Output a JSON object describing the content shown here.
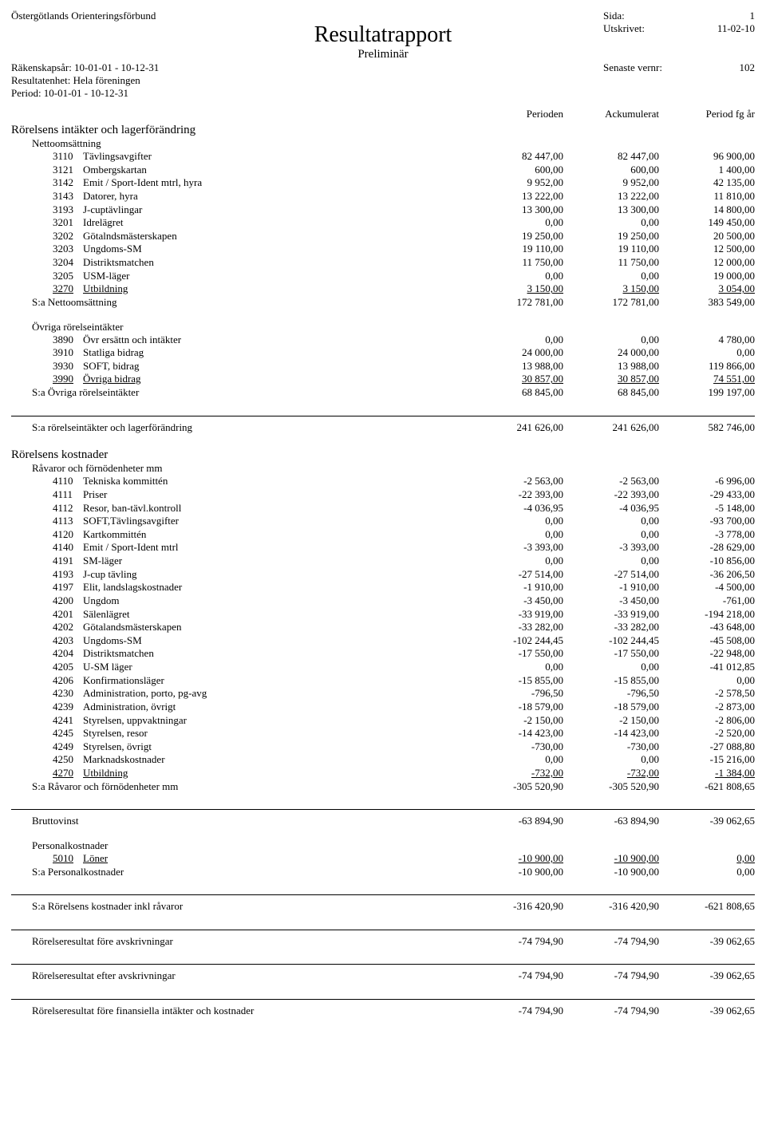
{
  "header": {
    "org": "Östergötlands Orienteringsförbund",
    "title": "Resultatrapport",
    "subtitle": "Preliminär",
    "right": [
      {
        "label": "Sida:",
        "value": "1"
      },
      {
        "label": "Utskrivet:",
        "value": "11-02-10"
      },
      {
        "label": "Senaste vernr:",
        "value": "102"
      }
    ],
    "left": [
      "Räkenskapsår: 10-01-01 - 10-12-31",
      "Resultatenhet: Hela föreningen",
      "Period: 10-01-01 - 10-12-31"
    ]
  },
  "columns": [
    "Perioden",
    "Ackumulerat",
    "Period fg år"
  ],
  "sections": [
    {
      "title": "Rörelsens intäkter och lagerförändring",
      "groups": [
        {
          "heading": "Nettoomsättning",
          "rows": [
            {
              "code": "3110",
              "label": "Tävlingsavgifter",
              "v": [
                "82 447,00",
                "82 447,00",
                "96 900,00"
              ]
            },
            {
              "code": "3121",
              "label": "Ombergskartan",
              "v": [
                "600,00",
                "600,00",
                "1 400,00"
              ]
            },
            {
              "code": "3142",
              "label": "Emit / Sport-Ident mtrl, hyra",
              "v": [
                "9 952,00",
                "9 952,00",
                "42 135,00"
              ]
            },
            {
              "code": "3143",
              "label": "Datorer, hyra",
              "v": [
                "13 222,00",
                "13 222,00",
                "11 810,00"
              ]
            },
            {
              "code": "3193",
              "label": "J-cuptävlingar",
              "v": [
                "13 300,00",
                "13 300,00",
                "14 800,00"
              ]
            },
            {
              "code": "3201",
              "label": "Idrelägret",
              "v": [
                "0,00",
                "0,00",
                "149 450,00"
              ]
            },
            {
              "code": "3202",
              "label": "Götalndsmästerskapen",
              "v": [
                "19 250,00",
                "19 250,00",
                "20 500,00"
              ]
            },
            {
              "code": "3203",
              "label": "Ungdoms-SM",
              "v": [
                "19 110,00",
                "19 110,00",
                "12 500,00"
              ]
            },
            {
              "code": "3204",
              "label": "Distriktsmatchen",
              "v": [
                "11 750,00",
                "11 750,00",
                "12 000,00"
              ]
            },
            {
              "code": "3205",
              "label": "USM-läger",
              "v": [
                "0,00",
                "0,00",
                "19 000,00"
              ]
            },
            {
              "code": "3270",
              "label": "Utbildning",
              "v": [
                "3 150,00",
                "3 150,00",
                "3 054,00"
              ],
              "underline": true
            }
          ],
          "sum": {
            "label": "S:a Nettoomsättning",
            "v": [
              "172 781,00",
              "172 781,00",
              "383 549,00"
            ]
          }
        },
        {
          "heading": "Övriga rörelseintäkter",
          "rows": [
            {
              "code": "3890",
              "label": "Övr ersättn och intäkter",
              "v": [
                "0,00",
                "0,00",
                "4 780,00"
              ]
            },
            {
              "code": "3910",
              "label": "Statliga bidrag",
              "v": [
                "24 000,00",
                "24 000,00",
                "0,00"
              ]
            },
            {
              "code": "3930",
              "label": "SOFT, bidrag",
              "v": [
                "13 988,00",
                "13 988,00",
                "119 866,00"
              ]
            },
            {
              "code": "3990",
              "label": "Övriga bidrag",
              "v": [
                "30 857,00",
                "30 857,00",
                "74 551,00"
              ],
              "underline": true
            }
          ],
          "sum": {
            "label": "S:a Övriga rörelseintäkter",
            "v": [
              "68 845,00",
              "68 845,00",
              "199 197,00"
            ]
          }
        }
      ],
      "total": {
        "label": "S:a rörelseintäkter och lagerförändring",
        "v": [
          "241 626,00",
          "241 626,00",
          "582 746,00"
        ]
      }
    },
    {
      "title": "Rörelsens kostnader",
      "groups": [
        {
          "heading": "Råvaror och förnödenheter mm",
          "rows": [
            {
              "code": "4110",
              "label": "Tekniska kommittén",
              "v": [
                "-2 563,00",
                "-2 563,00",
                "-6 996,00"
              ]
            },
            {
              "code": "4111",
              "label": "Priser",
              "v": [
                "-22 393,00",
                "-22 393,00",
                "-29 433,00"
              ]
            },
            {
              "code": "4112",
              "label": "Resor, ban-tävl.kontroll",
              "v": [
                "-4 036,95",
                "-4 036,95",
                "-5 148,00"
              ]
            },
            {
              "code": "4113",
              "label": "SOFT,Tävlingsavgifter",
              "v": [
                "0,00",
                "0,00",
                "-93 700,00"
              ]
            },
            {
              "code": "4120",
              "label": "Kartkommittén",
              "v": [
                "0,00",
                "0,00",
                "-3 778,00"
              ]
            },
            {
              "code": "4140",
              "label": "Emit / Sport-Ident mtrl",
              "v": [
                "-3 393,00",
                "-3 393,00",
                "-28 629,00"
              ]
            },
            {
              "code": "4191",
              "label": "SM-läger",
              "v": [
                "0,00",
                "0,00",
                "-10 856,00"
              ]
            },
            {
              "code": "4193",
              "label": "J-cup tävling",
              "v": [
                "-27 514,00",
                "-27 514,00",
                "-36 206,50"
              ]
            },
            {
              "code": "4197",
              "label": "Elit, landslagskostnader",
              "v": [
                "-1 910,00",
                "-1 910,00",
                "-4 500,00"
              ]
            },
            {
              "code": "4200",
              "label": "Ungdom",
              "v": [
                "-3 450,00",
                "-3 450,00",
                "-761,00"
              ]
            },
            {
              "code": "4201",
              "label": "Sälenlägret",
              "v": [
                "-33 919,00",
                "-33 919,00",
                "-194 218,00"
              ]
            },
            {
              "code": "4202",
              "label": "Götalandsmästerskapen",
              "v": [
                "-33 282,00",
                "-33 282,00",
                "-43 648,00"
              ]
            },
            {
              "code": "4203",
              "label": "Ungdoms-SM",
              "v": [
                "-102 244,45",
                "-102 244,45",
                "-45 508,00"
              ]
            },
            {
              "code": "4204",
              "label": "Distriktsmatchen",
              "v": [
                "-17 550,00",
                "-17 550,00",
                "-22 948,00"
              ]
            },
            {
              "code": "4205",
              "label": "U-SM läger",
              "v": [
                "0,00",
                "0,00",
                "-41 012,85"
              ]
            },
            {
              "code": "4206",
              "label": "Konfirmationsläger",
              "v": [
                "-15 855,00",
                "-15 855,00",
                "0,00"
              ]
            },
            {
              "code": "4230",
              "label": "Administration, porto, pg-avg",
              "v": [
                "-796,50",
                "-796,50",
                "-2 578,50"
              ]
            },
            {
              "code": "4239",
              "label": "Administration, övrigt",
              "v": [
                "-18 579,00",
                "-18 579,00",
                "-2 873,00"
              ]
            },
            {
              "code": "4241",
              "label": "Styrelsen, uppvaktningar",
              "v": [
                "-2 150,00",
                "-2 150,00",
                "-2 806,00"
              ]
            },
            {
              "code": "4245",
              "label": "Styrelsen, resor",
              "v": [
                "-14 423,00",
                "-14 423,00",
                "-2 520,00"
              ]
            },
            {
              "code": "4249",
              "label": "Styrelsen, övrigt",
              "v": [
                "-730,00",
                "-730,00",
                "-27 088,80"
              ]
            },
            {
              "code": "4250",
              "label": "Marknadskostnader",
              "v": [
                "0,00",
                "0,00",
                "-15 216,00"
              ]
            },
            {
              "code": "4270",
              "label": "Utbildning",
              "v": [
                "-732,00",
                "-732,00",
                "-1 384,00"
              ],
              "underline": true
            }
          ],
          "sum": {
            "label": "S:a Råvaror och förnödenheter mm",
            "v": [
              "-305 520,90",
              "-305 520,90",
              "-621 808,65"
            ]
          }
        }
      ]
    }
  ],
  "bruttovinst": {
    "label": "Bruttovinst",
    "v": [
      "-63 894,90",
      "-63 894,90",
      "-39 062,65"
    ]
  },
  "personal": {
    "heading": "Personalkostnader",
    "rows": [
      {
        "code": "5010",
        "label": "Löner",
        "v": [
          "-10 900,00",
          "-10 900,00",
          "0,00"
        ],
        "underline": true
      }
    ],
    "sum": {
      "label": "S:a Personalkostnader",
      "v": [
        "-10 900,00",
        "-10 900,00",
        "0,00"
      ]
    }
  },
  "totals": [
    {
      "label": "S:a Rörelsens kostnader inkl råvaror",
      "v": [
        "-316 420,90",
        "-316 420,90",
        "-621 808,65"
      ]
    },
    {
      "label": "Rörelseresultat före avskrivningar",
      "v": [
        "-74 794,90",
        "-74 794,90",
        "-39 062,65"
      ],
      "big": true
    },
    {
      "label": "Rörelseresultat efter avskrivningar",
      "v": [
        "-74 794,90",
        "-74 794,90",
        "-39 062,65"
      ],
      "big": true
    },
    {
      "label": "Rörelseresultat före finansiella intäkter och kostnader",
      "v": [
        "-74 794,90",
        "-74 794,90",
        "-39 062,65"
      ],
      "big": true
    }
  ]
}
